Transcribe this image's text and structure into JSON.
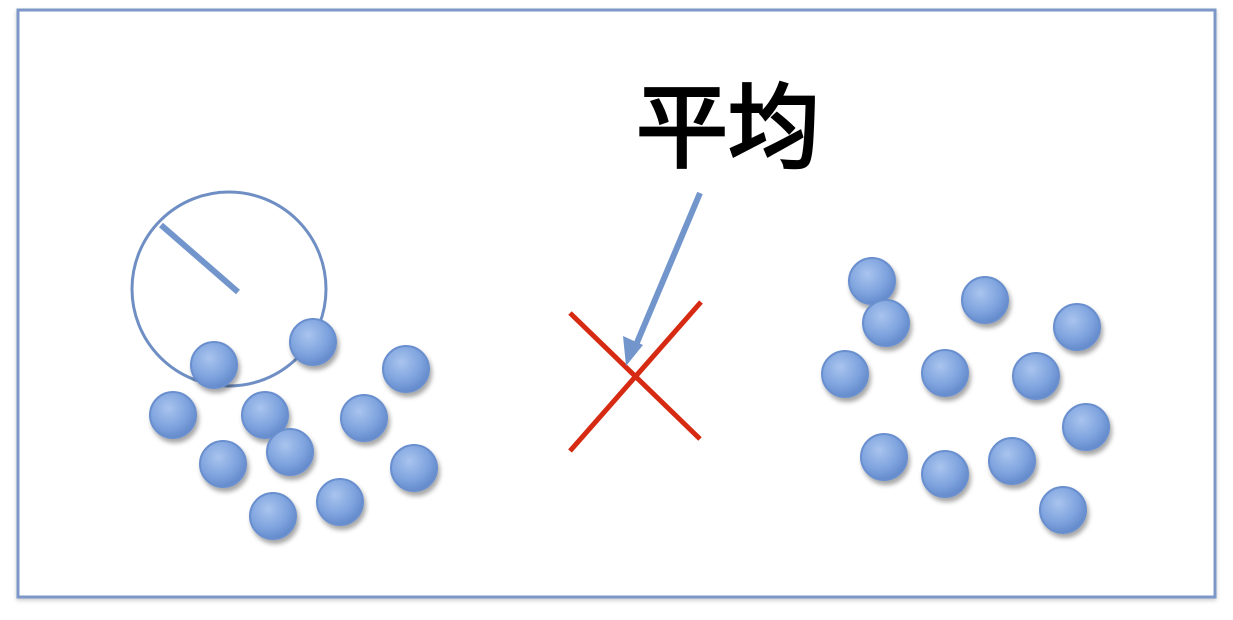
{
  "label": "平均",
  "colors": {
    "frame": "#7b97c8",
    "dot_fill": "#7ea3de",
    "dot_stroke": "#6a8fcf",
    "circle_stroke": "#6f8fc4",
    "arrow": "#7296cc",
    "cross": "#d62a12",
    "text": "#000000"
  },
  "left_cluster": {
    "dot_count": 12
  },
  "right_cluster": {
    "dot_count": 13
  }
}
